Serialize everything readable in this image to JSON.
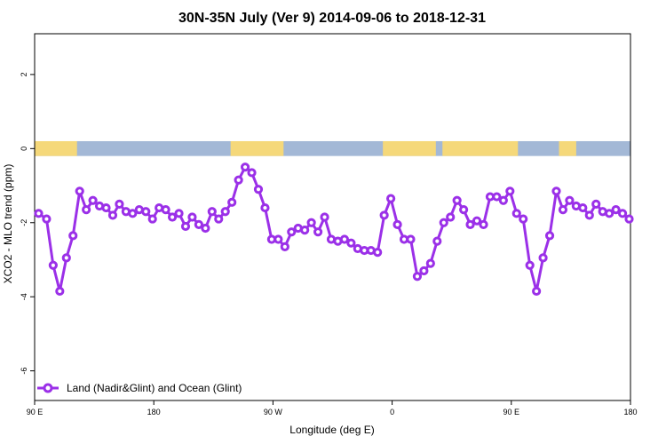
{
  "chart_data": {
    "type": "line",
    "title": "30N-35N July (Ver 9)   2014-09-06 to 2018-12-31",
    "xlabel": "Longitude (deg E)",
    "ylabel": "XCO2 - MLO trend (ppm)",
    "x_ticks": [
      "90 E",
      "180",
      "90 W",
      "0",
      "90 E",
      "180"
    ],
    "x_tick_positions": [
      90,
      180,
      270,
      360,
      450,
      540
    ],
    "xlim": [
      90,
      540
    ],
    "y_ticks": [
      "2",
      "0",
      "-2",
      "-4",
      "-6"
    ],
    "y_tick_values": [
      2,
      0,
      -2,
      -4,
      -6
    ],
    "ylim": [
      -6.8,
      3.1
    ],
    "grid": false,
    "legend": {
      "position": "bottom-left",
      "label": "Land (Nadir&Glint) and Ocean (Glint)"
    },
    "series": [
      {
        "name": "Land (Nadir&Glint) and Ocean (Glint)",
        "color": "#9b30e8",
        "x": [
          93,
          99,
          104,
          109,
          114,
          119,
          124,
          129,
          134,
          139,
          144,
          149,
          154,
          159,
          164,
          169,
          174,
          179,
          184,
          189,
          194,
          199,
          204,
          209,
          214,
          219,
          224,
          229,
          234,
          239,
          244,
          249,
          254,
          259,
          264,
          269,
          274,
          279,
          284,
          289,
          294,
          299,
          304,
          309,
          314,
          319,
          324,
          329,
          334,
          339,
          344,
          349,
          354,
          359,
          364,
          369,
          374,
          379,
          384,
          389,
          394,
          399,
          404,
          409,
          414,
          419,
          424,
          429,
          434,
          439,
          444,
          449,
          454,
          459,
          464,
          469,
          474,
          479,
          484,
          489,
          494,
          499,
          504,
          509,
          514,
          519,
          524,
          529,
          534,
          539
        ],
        "values": [
          -1.75,
          -1.9,
          -3.15,
          -3.85,
          -2.95,
          -2.35,
          -1.15,
          -1.65,
          -1.4,
          -1.55,
          -1.6,
          -1.8,
          -1.5,
          -1.7,
          -1.75,
          -1.65,
          -1.7,
          -1.9,
          -1.6,
          -1.65,
          -1.85,
          -1.75,
          -2.1,
          -1.85,
          -2.05,
          -2.15,
          -1.7,
          -1.9,
          -1.7,
          -1.45,
          -0.85,
          -0.5,
          -0.65,
          -1.1,
          -1.6,
          -2.45,
          -2.45,
          -2.65,
          -2.25,
          -2.15,
          -2.2,
          -2.0,
          -2.25,
          -1.85,
          -2.45,
          -2.5,
          -2.45,
          -2.55,
          -2.7,
          -2.75,
          -2.75,
          -2.8,
          -1.8,
          -1.35,
          -2.05,
          -2.45,
          -2.45,
          -3.45,
          -3.3,
          -3.1,
          -2.5,
          -2.0,
          -1.85,
          -1.4,
          -1.65,
          -2.05,
          -1.95,
          -2.05,
          -1.3,
          -1.3,
          -1.4,
          -1.15,
          -1.75,
          -1.9,
          -3.15,
          -3.85,
          -2.95,
          -2.35,
          -1.15,
          -1.65,
          -1.4,
          -1.55,
          -1.6,
          -1.8,
          -1.5,
          -1.7,
          -1.75,
          -1.65,
          -1.75,
          -1.9
        ]
      }
    ],
    "surface_band": {
      "y_top": 0.2,
      "y_bottom": -0.2,
      "land_color": "#f5d87a",
      "ocean_color": "#a3b8d6",
      "land_segments": [
        [
          90,
          122
        ],
        [
          238,
          278
        ],
        [
          353,
          393
        ],
        [
          398,
          455
        ],
        [
          486,
          499
        ]
      ]
    }
  }
}
